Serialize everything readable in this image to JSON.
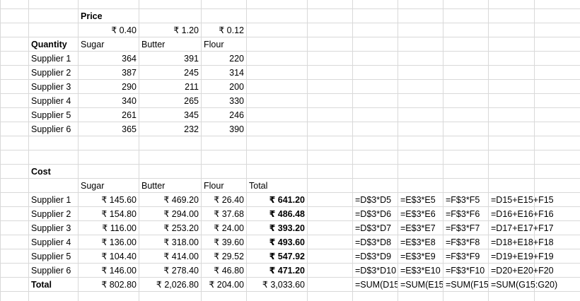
{
  "price_section": {
    "title": "Price",
    "prices": [
      "₹ 0.40",
      "₹ 1.20",
      "₹ 0.12"
    ]
  },
  "quantity_section": {
    "title": "Quantity",
    "headers": [
      "Sugar",
      "Butter",
      "Flour"
    ],
    "rows": [
      {
        "supplier": "Supplier 1",
        "values": [
          "364",
          "391",
          "220"
        ]
      },
      {
        "supplier": "Supplier 2",
        "values": [
          "387",
          "245",
          "314"
        ]
      },
      {
        "supplier": "Supplier 3",
        "values": [
          "290",
          "211",
          "200"
        ]
      },
      {
        "supplier": "Supplier 4",
        "values": [
          "340",
          "265",
          "330"
        ]
      },
      {
        "supplier": "Supplier 5",
        "values": [
          "261",
          "345",
          "246"
        ]
      },
      {
        "supplier": "Supplier 6",
        "values": [
          "365",
          "232",
          "390"
        ]
      }
    ]
  },
  "cost_section": {
    "title": "Cost",
    "headers": [
      "Sugar",
      "Butter",
      "Flour",
      "Total"
    ],
    "rows": [
      {
        "supplier": "Supplier 1",
        "values": [
          "₹ 145.60",
          "₹ 469.20",
          "₹ 26.40"
        ],
        "total": "₹ 641.20",
        "formulas": [
          "=D$3*D5",
          "=E$3*E5",
          "=F$3*F5",
          "=D15+E15+F15"
        ]
      },
      {
        "supplier": "Supplier 2",
        "values": [
          "₹ 154.80",
          "₹ 294.00",
          "₹ 37.68"
        ],
        "total": "₹ 486.48",
        "formulas": [
          "=D$3*D6",
          "=E$3*E6",
          "=F$3*F6",
          "=D16+E16+F16"
        ]
      },
      {
        "supplier": "Supplier 3",
        "values": [
          "₹ 116.00",
          "₹ 253.20",
          "₹ 24.00"
        ],
        "total": "₹ 393.20",
        "formulas": [
          "=D$3*D7",
          "=E$3*E7",
          "=F$3*F7",
          "=D17+E17+F17"
        ]
      },
      {
        "supplier": "Supplier 4",
        "values": [
          "₹ 136.00",
          "₹ 318.00",
          "₹ 39.60"
        ],
        "total": "₹ 493.60",
        "formulas": [
          "=D$3*D8",
          "=E$3*E8",
          "=F$3*F8",
          "=D18+E18+F18"
        ]
      },
      {
        "supplier": "Supplier 5",
        "values": [
          "₹ 104.40",
          "₹ 414.00",
          "₹ 29.52"
        ],
        "total": "₹ 547.92",
        "formulas": [
          "=D$3*D9",
          "=E$3*E9",
          "=F$3*F9",
          "=D19+E19+F19"
        ]
      },
      {
        "supplier": "Supplier 6",
        "values": [
          "₹ 146.00",
          "₹ 278.40",
          "₹ 46.80"
        ],
        "total": "₹ 471.20",
        "formulas": [
          "=D$3*D10",
          "=E$3*E10",
          "=F$3*F10",
          "=D20+E20+F20"
        ]
      }
    ],
    "totals_row": {
      "label": "Total",
      "values": [
        "₹ 802.80",
        "₹ 2,026.80",
        "₹ 204.00",
        "₹ 3,033.60"
      ],
      "formulas": [
        "=SUM(D15",
        "=SUM(E15",
        "=SUM(F15",
        "=SUM(G15:G20)"
      ]
    }
  },
  "colors": {
    "gridline": "#d9d9d9",
    "text": "#000000",
    "background": "#ffffff"
  }
}
